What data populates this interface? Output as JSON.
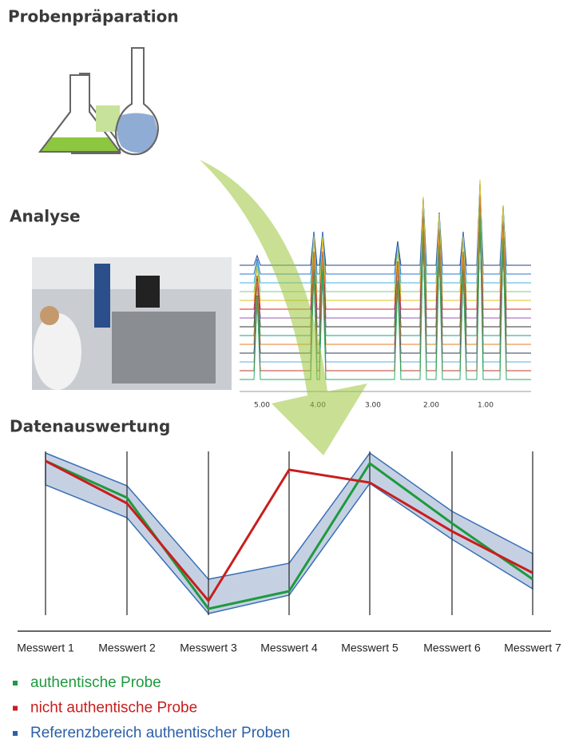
{
  "sections": {
    "preparation": {
      "title": "Probenpräparation"
    },
    "analysis": {
      "title": "Analyse",
      "spectrum_ticks": [
        "5.00",
        "4.00",
        "3.00",
        "2.00",
        "1.00"
      ]
    },
    "evaluation": {
      "title": "Datenauswertung",
      "axes": [
        "Messwert 1",
        "Messwert 2",
        "Messwert 3",
        "Messwert 4",
        "Messwert 5",
        "Messwert 6",
        "Messwert 7"
      ]
    }
  },
  "legend": [
    {
      "label": "authentische Probe"
    },
    {
      "label": "nicht authentische Probe"
    },
    {
      "label": "Referenzbereich authentischer Proben"
    }
  ]
}
